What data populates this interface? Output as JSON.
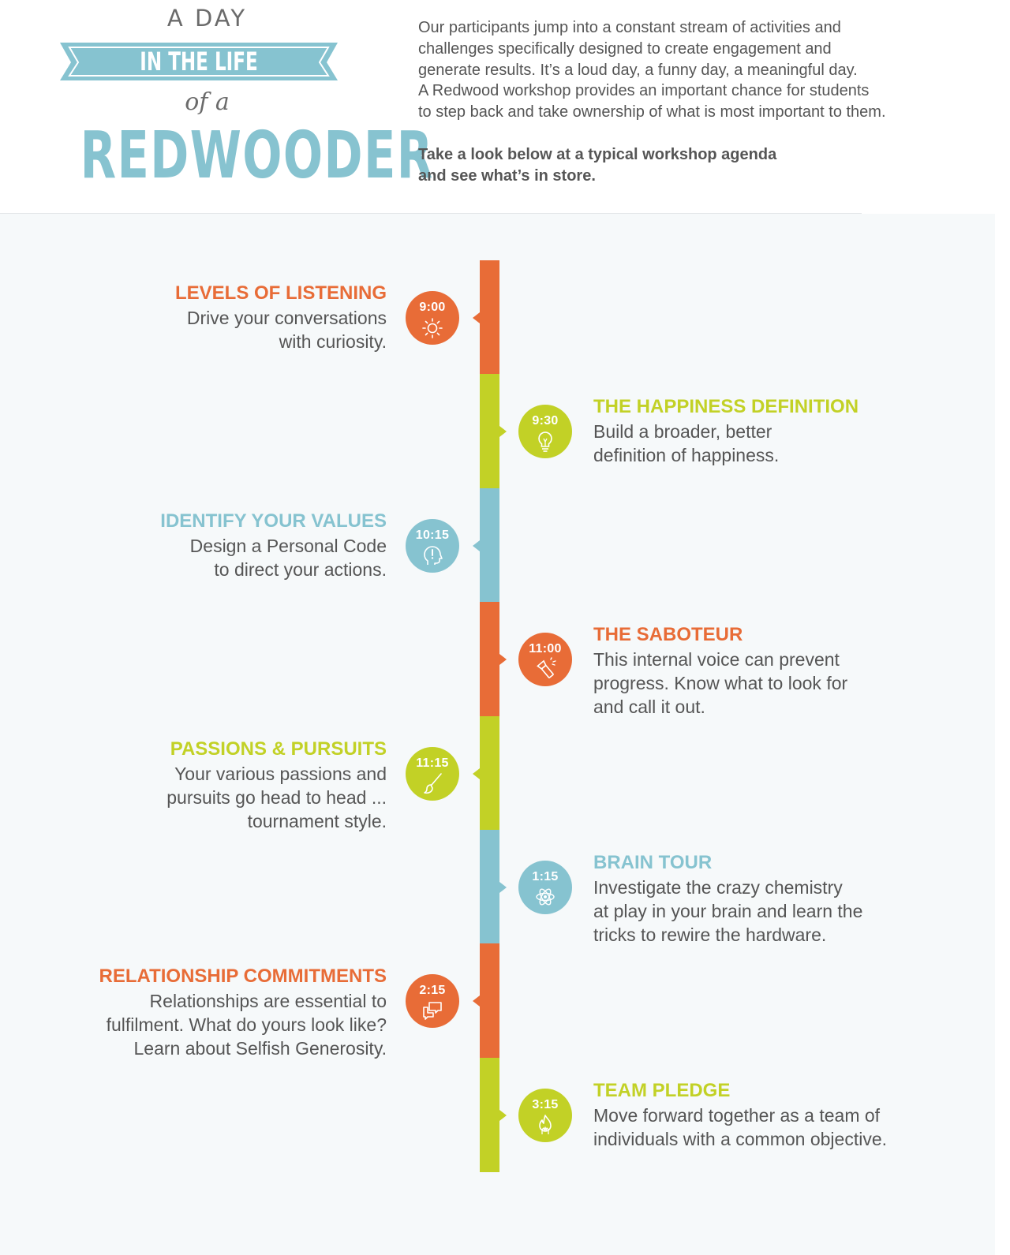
{
  "colors": {
    "orange": "#e86c37",
    "green": "#c2d126",
    "blue": "#86c3d0",
    "text": "#555555",
    "section_bg": "#f6f9fa"
  },
  "header": {
    "line1": "A DAY",
    "banner": "IN THE LIFE",
    "line3": "of a",
    "title": "REDWOODER",
    "intro": "Our participants jump into a constant stream of activities and\nchallenges specifically designed to create engagement and\ngenerate results. It’s a loud day, a funny day, a meaningful day.\nA Redwood workshop provides an important chance for students\nto step back and take ownership of what is most important to them.",
    "cta": "Take a look below at a typical workshop agenda\nand see what’s in store."
  },
  "agenda": [
    {
      "time": "9:00",
      "icon": "sun-icon",
      "color": "orange",
      "side": "left",
      "title": "LEVELS OF LISTENING",
      "desc": "Drive your conversations\nwith curiosity."
    },
    {
      "time": "9:30",
      "icon": "lightbulb-icon",
      "color": "green",
      "side": "right",
      "title": "THE HAPPINESS DEFINITION",
      "desc": "Build a broader, better\ndefinition of happiness."
    },
    {
      "time": "10:15",
      "icon": "head-exclamation-icon",
      "color": "blue",
      "side": "left",
      "title": "IDENTIFY YOUR VALUES",
      "desc": "Design a Personal Code\nto direct your actions."
    },
    {
      "time": "11:00",
      "icon": "flashlight-icon",
      "color": "orange",
      "side": "right",
      "title": "THE SABOTEUR",
      "desc": "This internal voice can prevent\nprogress. Know what to look for\nand call it out."
    },
    {
      "time": "11:15",
      "icon": "paintbrush-icon",
      "color": "green",
      "side": "left",
      "title": "PASSIONS & PURSUITS",
      "desc": "Your various passions and\npursuits go head to head ...\ntournament style."
    },
    {
      "time": "1:15",
      "icon": "atom-icon",
      "color": "blue",
      "side": "right",
      "title": "BRAIN TOUR",
      "desc": "Investigate the crazy chemistry\nat play in your brain and learn the\ntricks to rewire the hardware."
    },
    {
      "time": "2:15",
      "icon": "chat-bubbles-icon",
      "color": "orange",
      "side": "left",
      "title": "RELATIONSHIP COMMITMENTS",
      "desc": "Relationships are essential to\nfulfilment. What do yours look like?\nLearn about Selfish Generosity."
    },
    {
      "time": "3:15",
      "icon": "flame-hand-icon",
      "color": "green",
      "side": "right",
      "title": "TEAM PLEDGE",
      "desc": "Move forward together as a team of\nindividuals with a common objective."
    }
  ]
}
